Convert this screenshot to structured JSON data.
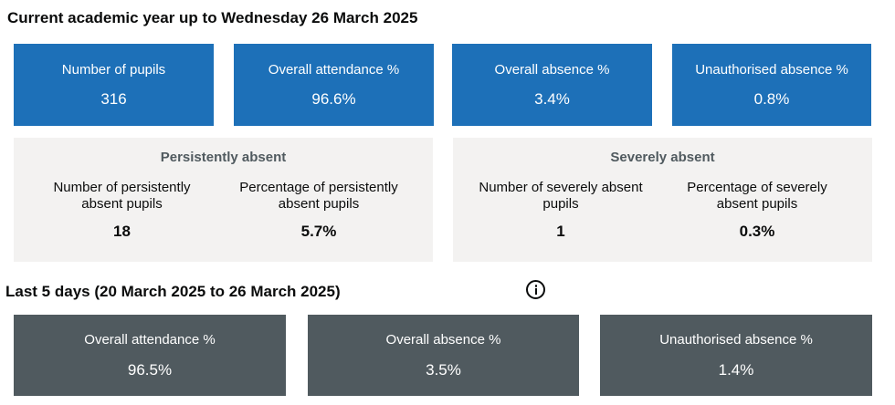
{
  "current": {
    "title": "Current academic year up to Wednesday 26 March 2025",
    "tiles": [
      {
        "label": "Number of pupils",
        "value": "316"
      },
      {
        "label": "Overall attendance %",
        "value": "96.6%"
      },
      {
        "label": "Overall absence %",
        "value": "3.4%"
      },
      {
        "label": "Unauthorised absence %",
        "value": "0.8%"
      }
    ],
    "persistently_absent": {
      "title": "Persistently absent",
      "items": [
        {
          "label_line1": "Number of persistently",
          "label_line2": "absent pupils",
          "value": "18"
        },
        {
          "label_line1": "Percentage of persistently",
          "label_line2": "absent pupils",
          "value": "5.7%"
        }
      ]
    },
    "severely_absent": {
      "title": "Severely absent",
      "items": [
        {
          "label_line1": "Number of severely absent",
          "label_line2": "pupils",
          "value": "1"
        },
        {
          "label_line1": "Percentage of severely",
          "label_line2": "absent pupils",
          "value": "0.3%"
        }
      ]
    }
  },
  "last5": {
    "title": "Last 5 days (20 March 2025 to 26 March 2025)",
    "info_icon": "info-icon",
    "tiles": [
      {
        "label": "Overall attendance %",
        "value": "96.5%"
      },
      {
        "label": "Overall absence %",
        "value": "3.5%"
      },
      {
        "label": "Unauthorised absence %",
        "value": "1.4%"
      }
    ]
  },
  "colors": {
    "tile_blue": "#1d70b8",
    "tile_grey": "#505a5f",
    "panel_bg": "#f3f2f1",
    "panel_title": "#505a5f"
  }
}
